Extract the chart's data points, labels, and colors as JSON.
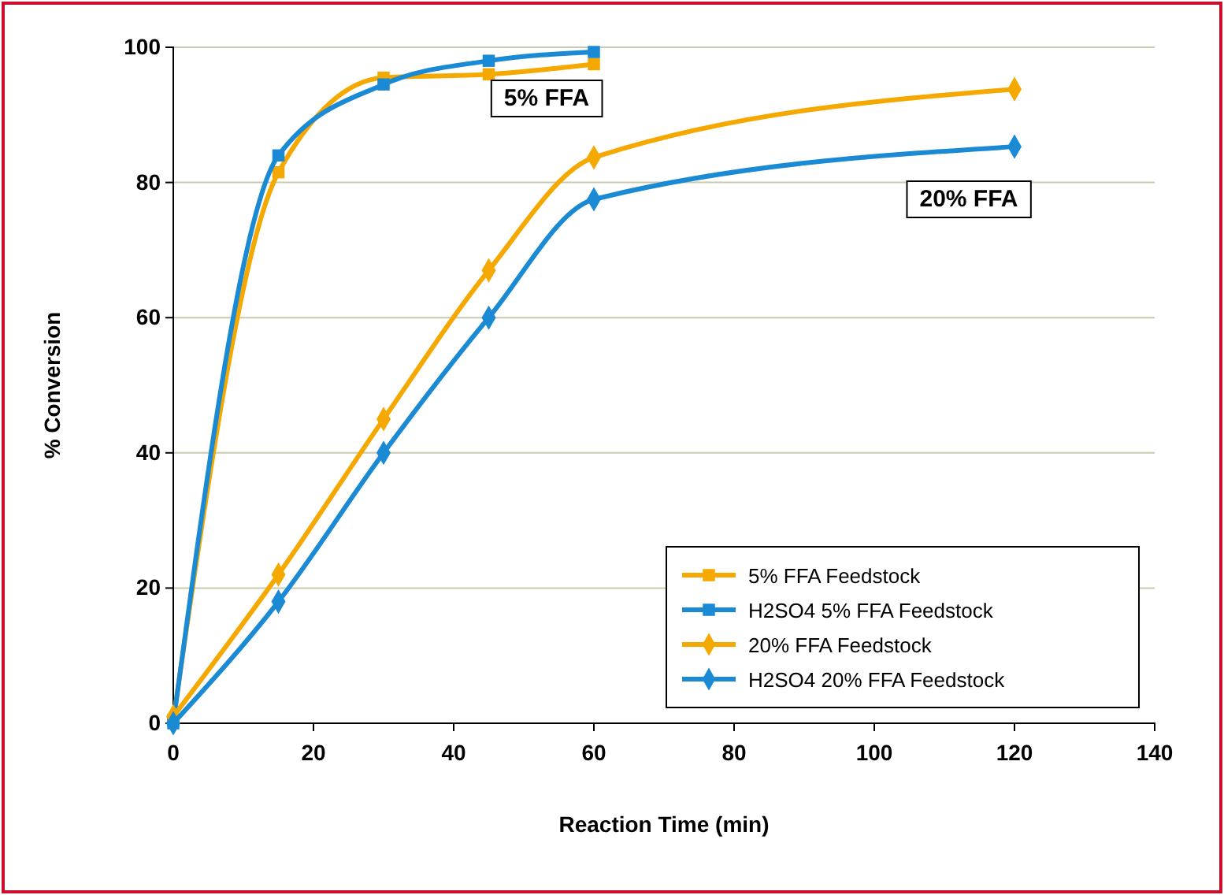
{
  "chart_data": {
    "type": "line",
    "xlabel": "Reaction Time (min)",
    "ylabel": "% Conversion",
    "xlim": [
      0,
      140
    ],
    "xticks": [
      0,
      20,
      40,
      60,
      80,
      100,
      120,
      140
    ],
    "ylim": [
      0,
      100
    ],
    "yticks": [
      0,
      20,
      40,
      60,
      80,
      100
    ],
    "grid": "y",
    "legend": "bottom right",
    "series": [
      {
        "name": "5% FFA Feedstock",
        "color": "#f5a800",
        "marker": "square",
        "x": [
          0,
          15,
          30,
          45,
          60
        ],
        "values": [
          0.5,
          81.5,
          95.5,
          96,
          97.5
        ]
      },
      {
        "name": "H2SO4 5% FFA Feedstock",
        "color": "#1a8ad4",
        "marker": "square",
        "x": [
          0,
          15,
          30,
          45,
          60
        ],
        "values": [
          0,
          84,
          94.5,
          98,
          99.3
        ]
      },
      {
        "name": "20% FFA Feedstock",
        "color": "#f5a800",
        "marker": "diamond",
        "x": [
          0,
          15,
          30,
          45,
          60,
          120
        ],
        "values": [
          1,
          22,
          45,
          67,
          83.7,
          93.8
        ]
      },
      {
        "name": "H2SO4 20% FFA Feedstock",
        "color": "#1a8ad4",
        "marker": "diamond",
        "x": [
          0,
          15,
          30,
          45,
          60,
          120
        ],
        "values": [
          0,
          18,
          40,
          60,
          77.5,
          85.3
        ]
      }
    ],
    "annotations": [
      "5% FFA",
      "20% FFA"
    ]
  }
}
